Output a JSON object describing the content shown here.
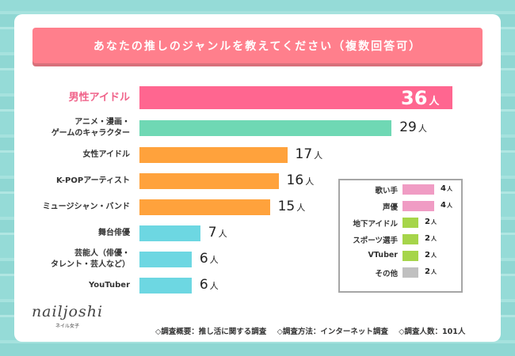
{
  "title": "あなたの推しのジャンルを教えてください（複数回答可）",
  "unit": "人",
  "chart_data": {
    "type": "bar",
    "orientation": "horizontal",
    "title": "あなたの推しのジャンルを教えてください（複数回答可）",
    "xlabel": "",
    "ylabel": "",
    "value_unit": "人",
    "xlim": [
      0,
      36
    ],
    "grid": false,
    "categories": [
      "男性アイドル",
      "アニメ・漫画・ゲームのキャラクター",
      "女性アイドル",
      "K-POPアーティスト",
      "ミュージシャン・バンド",
      "舞台俳優",
      "芸能人（俳優・タレント・芸人など）",
      "YouTuber"
    ],
    "category_lines": [
      [
        "男性アイドル"
      ],
      [
        "アニメ・漫画・",
        "ゲームのキャラクター"
      ],
      [
        "女性アイドル"
      ],
      [
        "K-POPアーティスト"
      ],
      [
        "ミュージシャン・バンド"
      ],
      [
        "舞台俳優"
      ],
      [
        "芸能人（俳優・",
        "タレント・芸人など）"
      ],
      [
        "YouTuber"
      ]
    ],
    "values": [
      36,
      29,
      17,
      16,
      15,
      7,
      6,
      6
    ],
    "colors": [
      "#ff6690",
      "#6fd8b4",
      "#ffa23c",
      "#ffa23c",
      "#ffa23c",
      "#6dd7e2",
      "#6dd7e2",
      "#6dd7e2"
    ],
    "highlight_index": 0,
    "highlight_color": "#f0638a",
    "inset": {
      "type": "bar",
      "legend_placement": "bottom-right",
      "categories": [
        "歌い手",
        "声優",
        "地下アイドル",
        "スポーツ選手",
        "VTuber",
        "その他"
      ],
      "values": [
        4,
        4,
        2,
        2,
        2,
        2
      ],
      "colors": [
        "#f09cc4",
        "#f09cc4",
        "#a6d54a",
        "#a6d54a",
        "#a6d54a",
        "#c0c0c0"
      ]
    }
  },
  "logo": {
    "main": "nailjoshi",
    "sub": "ネイル女子"
  },
  "footer": {
    "items": [
      "◇調査概要：推し活に関する調査",
      "◇調査方法：インターネット調査",
      "◇調査人数：101人"
    ]
  }
}
